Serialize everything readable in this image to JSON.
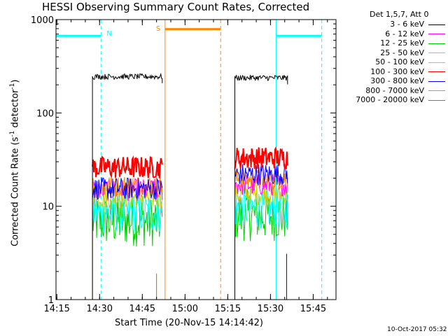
{
  "chart_data": {
    "type": "line",
    "title": "HESSI Observing Summary Count Rates, Corrected",
    "xlabel": "Start Time (20-Nov-15 14:14:42)",
    "ylabel_main": "Corrected Count Rate (s",
    "ylabel_sup1": "-1",
    "ylabel_mid": " detector",
    "ylabel_sup2": "-1",
    "ylabel_end": ")",
    "yscale": "log",
    "ylim": [
      1,
      1000
    ],
    "xlim": [
      "14:14:42",
      "15:53:00"
    ],
    "xticks": [
      "14:15",
      "14:30",
      "14:45",
      "15:00",
      "15:15",
      "15:30",
      "15:45"
    ],
    "yticks": [
      "1",
      "10",
      "100",
      "1000"
    ],
    "legend_title": "Det 1,5,7, Att 0",
    "legend_position": "top-right outside",
    "series": [
      {
        "name": "3 - 6 keV",
        "color": "#000000",
        "segments": [
          {
            "x": [
              "14:27:30",
              "14:52:00"
            ],
            "y": 245
          },
          {
            "x": [
              "15:17:30",
              "15:36:00"
            ],
            "y": 238
          }
        ]
      },
      {
        "name": "6 - 12 keV",
        "color": "#ff00ff",
        "segments": [
          {
            "x": [
              "14:27:30",
              "14:52:00"
            ],
            "y": 15
          },
          {
            "x": [
              "15:17:30",
              "15:36:00"
            ],
            "y": 17
          }
        ]
      },
      {
        "name": "12 - 25 keV",
        "color": "#00cc00",
        "segments": [
          {
            "x": [
              "14:27:30",
              "14:52:00"
            ],
            "y": 7
          },
          {
            "x": [
              "15:17:30",
              "15:36:00"
            ],
            "y": 8
          }
        ]
      },
      {
        "name": "25 - 50 keV",
        "color": "#00ffff",
        "segments": [
          {
            "x": [
              "14:27:30",
              "14:52:00"
            ],
            "y": 8.5
          },
          {
            "x": [
              "15:17:30",
              "15:36:00"
            ],
            "y": 9.5
          }
        ]
      },
      {
        "name": "50 - 100 keV",
        "color": "#cccc00",
        "segments": [
          {
            "x": [
              "14:27:30",
              "14:52:00"
            ],
            "y": 12.5
          },
          {
            "x": [
              "15:17:30",
              "15:36:00"
            ],
            "y": 13.5
          }
        ]
      },
      {
        "name": "100 - 300 keV",
        "color": "#ff0000",
        "segments": [
          {
            "x": [
              "14:27:30",
              "14:52:00"
            ],
            "y": 26
          },
          {
            "x": [
              "15:17:30",
              "15:36:00"
            ],
            "y": 33
          }
        ]
      },
      {
        "name": "300 - 800 keV",
        "color": "#0000ff",
        "segments": [
          {
            "x": [
              "14:27:30",
              "14:52:00"
            ],
            "y": 15.5
          },
          {
            "x": [
              "15:17:30",
              "15:36:00"
            ],
            "y": 22
          }
        ]
      },
      {
        "name": "800 - 7000 keV",
        "color": "#ff8800",
        "segments": [
          {
            "x": [
              "14:27:30",
              "14:52:00"
            ],
            "y": 16.5
          },
          {
            "x": [
              "15:17:30",
              "15:36:00"
            ],
            "y": 19.5
          }
        ]
      },
      {
        "name": "7000 - 20000 keV",
        "color": "#aa7700",
        "segments": []
      }
    ],
    "annotations": {
      "night_label": "N",
      "saa_label": "S",
      "night_color": "#00ffff",
      "saa_color": "#ff8800",
      "night_intervals": [
        [
          "14:14:42",
          "14:30:30"
        ],
        [
          "15:32:00",
          "15:48:00"
        ]
      ],
      "saa_interval": [
        "14:53:00",
        "15:12:30"
      ]
    }
  },
  "footer": {
    "date": "10-Oct-2017 05:32"
  }
}
